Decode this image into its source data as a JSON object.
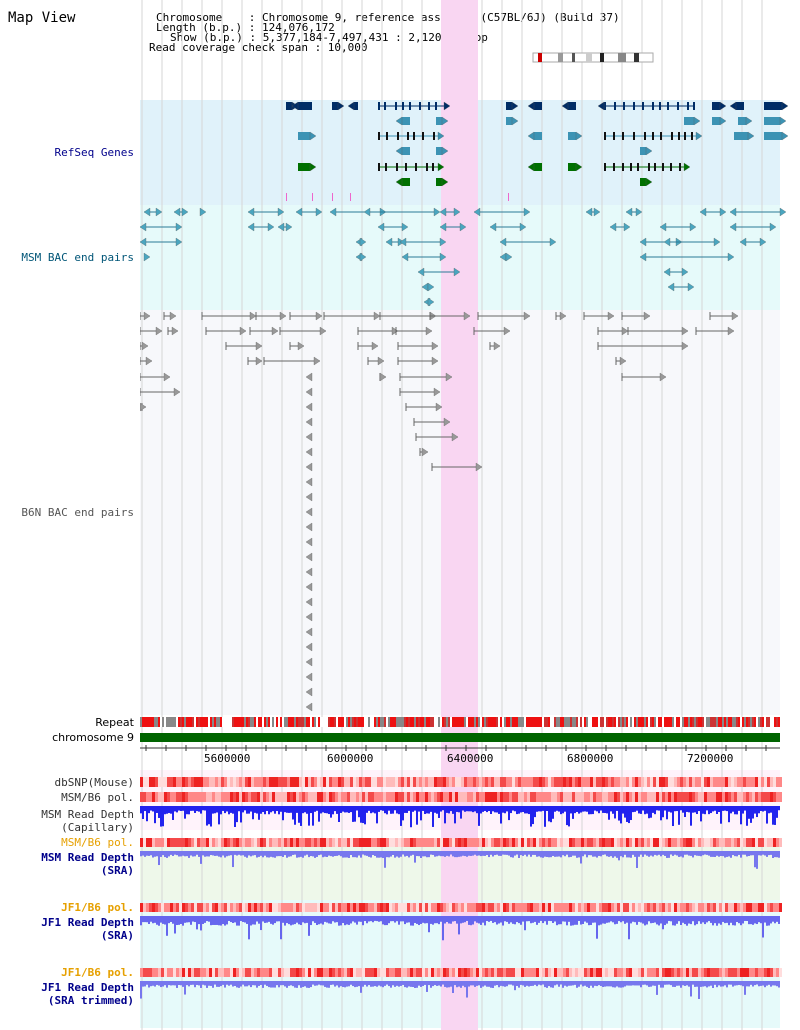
{
  "title": "Map View",
  "info": {
    "chromosome": "Chromosome    : Chromosome 9, reference assembly (C57BL/6J) (Build 37)",
    "length": "Length (b.p.) : 124,076,172",
    "show": "Show (b.p.) : 5,377,184-7,497,431 : 2,120,248 bp",
    "coverage": "Read coverage check span : 10,000"
  },
  "tracks": {
    "refseq": "RefSeq Genes",
    "msm_bac": "MSM BAC end pairs",
    "b6n_bac": "B6N BAC end pairs",
    "repeat": "Repeat",
    "chromosome": "chromosome 9",
    "dbsnp": "dbSNP(Mouse)",
    "msm_pol": "MSM/B6 pol.",
    "msm_depth_cap_1": "MSM Read Depth",
    "msm_depth_cap_2": "(Capillary)",
    "msm_pol_2": "MSM/B6 pol.",
    "msm_depth_sra_1": "MSM Read Depth",
    "msm_depth_sra_2": "(SRA)",
    "jf1_pol": "JF1/B6 pol.",
    "jf1_depth_1": "JF1 Read Depth",
    "jf1_depth_2": "(SRA)",
    "jf1_pol_2": "JF1/B6 pol.",
    "jf1_trim_1": "JF1 Read Depth",
    "jf1_trim_2": "(SRA trimmed)"
  },
  "axis": {
    "ticks": [
      "5600000",
      "6000000",
      "6400000",
      "6800000",
      "7200000"
    ]
  },
  "colors": {
    "refseq_bg": "#e0f2fa",
    "msm_bac_bg": "#e6fafa",
    "highlight": "#f9d6f2",
    "gene_dark": "#002d66",
    "gene_light": "#3c93b4",
    "gene_green": "#007000",
    "repeat_red": "#ee1111",
    "chromosome_green": "#006400",
    "depth_blue": "#4444ee",
    "label_blue": "#00008b",
    "label_orange": "#e6a000"
  }
}
